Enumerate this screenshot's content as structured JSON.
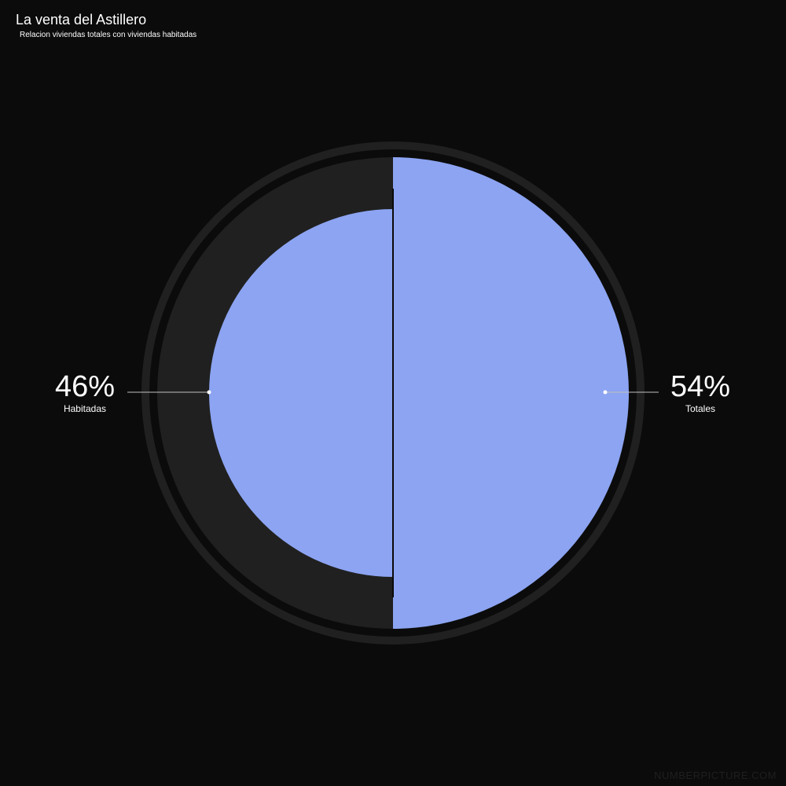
{
  "title": "La venta del Astillero",
  "subtitle": "Relacion viviendas totales con viviendas habitadas",
  "watermark": "NUMBERPICTURE.COM",
  "colors": {
    "background": "#0b0b0b",
    "ring": "#202020",
    "slice": "#8ca4f2",
    "text": "#ffffff"
  },
  "chart_data": {
    "type": "pie",
    "title": "La venta del Astillero",
    "subtitle": "Relacion viviendas totales con viviendas habitadas",
    "slices": [
      {
        "label": "Habitadas",
        "value": 46,
        "display": "46%"
      },
      {
        "label": "Totales",
        "value": 54,
        "display": "54%"
      }
    ]
  }
}
